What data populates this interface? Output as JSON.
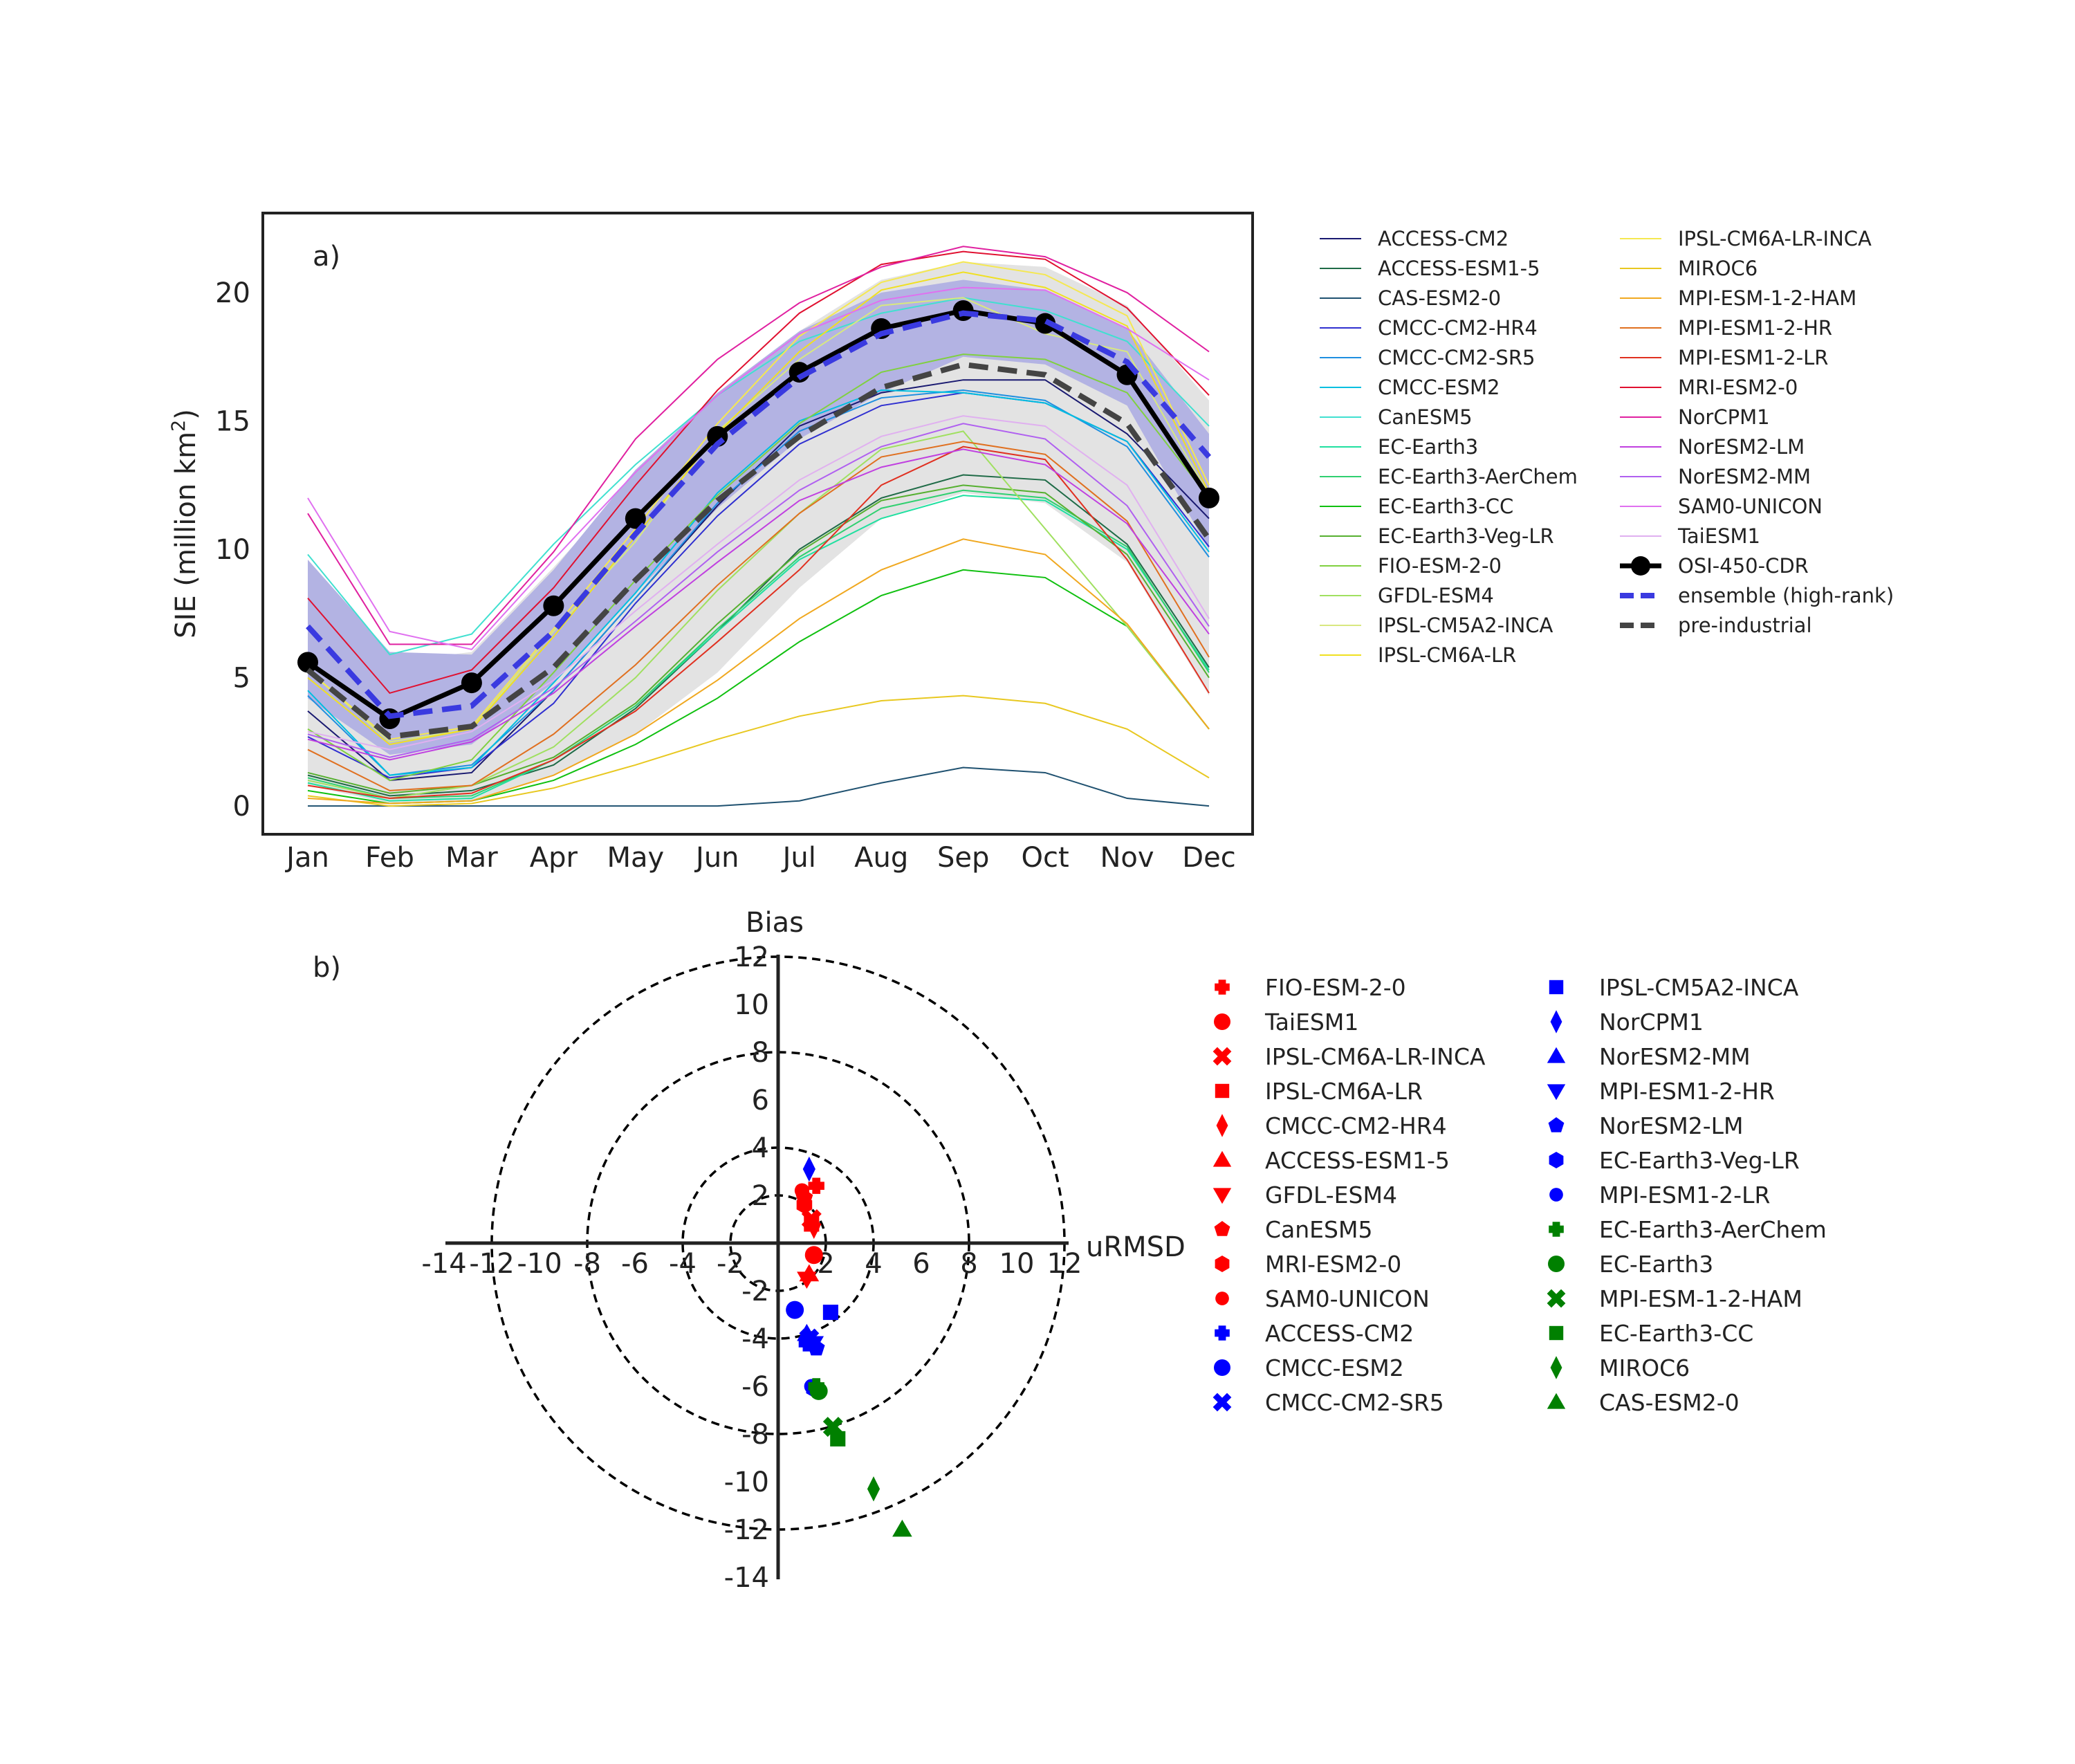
{
  "chart_data": [
    {
      "type": "line",
      "panel_label": "a)",
      "ylabel": "SIE (million km²)",
      "ylabel_main": "SIE (million km",
      "ylabel_sup": "2",
      "ylabel_close": ")",
      "ylim": [
        -1.1,
        23.1
      ],
      "yticks": [
        0,
        5,
        10,
        15,
        20
      ],
      "categories": [
        "Jan",
        "Feb",
        "Mar",
        "Apr",
        "May",
        "Jun",
        "Jul",
        "Aug",
        "Sep",
        "Oct",
        "Nov",
        "Dec"
      ],
      "grid": false,
      "legend_position": "right",
      "bands": [
        {
          "name": "pre-industrial range",
          "color": "#e3e3e3",
          "lower": [
            0.8,
            0.1,
            0.2,
            1.2,
            2.8,
            5.2,
            8.5,
            11.2,
            12.2,
            11.8,
            9.5,
            4.3
          ],
          "upper": [
            9.1,
            5.6,
            6.0,
            9.3,
            12.8,
            15.6,
            18.5,
            20.5,
            21.2,
            21.0,
            19.5,
            15.8
          ]
        },
        {
          "name": "high-rank ensemble range",
          "color": "#b3b3e3",
          "lower": [
            4.2,
            2.0,
            2.4,
            4.8,
            8.3,
            11.6,
            14.3,
            16.1,
            17.5,
            17.2,
            15.6,
            10.0
          ],
          "upper": [
            9.6,
            6.0,
            5.9,
            9.2,
            13.1,
            16.1,
            18.5,
            20.0,
            20.5,
            20.1,
            18.6,
            14.5
          ]
        }
      ],
      "series": [
        {
          "name": "ACCESS-CM2",
          "color": "#191970",
          "values": [
            3.7,
            1.0,
            1.3,
            4.5,
            8.1,
            11.7,
            14.8,
            16.1,
            16.6,
            16.6,
            14.5,
            11.2
          ]
        },
        {
          "name": "ACCESS-ESM1-5",
          "color": "#1f6b47",
          "values": [
            1.2,
            0.4,
            0.6,
            1.6,
            3.8,
            6.8,
            10.0,
            12.0,
            12.9,
            12.7,
            10.2,
            5.4
          ]
        },
        {
          "name": "CAS-ESM2-0",
          "color": "#1f5170",
          "values": [
            0.0,
            0.0,
            0.0,
            0.0,
            0.0,
            0.0,
            0.2,
            0.9,
            1.5,
            1.3,
            0.3,
            0.0
          ]
        },
        {
          "name": "CMCC-CM2-HR4",
          "color": "#3030d0",
          "values": [
            2.7,
            1.1,
            1.5,
            4.0,
            7.9,
            11.3,
            14.1,
            15.6,
            16.1,
            15.7,
            14.2,
            10.1
          ]
        },
        {
          "name": "CMCC-CM2-SR5",
          "color": "#1f8fe0",
          "values": [
            4.3,
            1.2,
            1.6,
            4.5,
            8.1,
            11.8,
            14.6,
            15.9,
            16.2,
            15.8,
            14.0,
            9.7
          ]
        },
        {
          "name": "CMCC-ESM2",
          "color": "#00bfe0",
          "values": [
            4.5,
            1.2,
            1.5,
            4.8,
            8.3,
            12.2,
            15.0,
            16.2,
            16.1,
            15.7,
            14.2,
            9.9
          ]
        },
        {
          "name": "CanESM5",
          "color": "#40e0d0",
          "values": [
            9.8,
            5.9,
            6.7,
            10.2,
            13.3,
            16.0,
            18.1,
            19.2,
            19.8,
            19.3,
            18.1,
            14.8
          ]
        },
        {
          "name": "EC-Earth3",
          "color": "#20e0a0",
          "values": [
            0.9,
            0.2,
            0.3,
            1.8,
            3.9,
            6.8,
            9.6,
            11.2,
            12.1,
            11.9,
            10.0,
            5.3
          ]
        },
        {
          "name": "EC-Earth3-AerChem",
          "color": "#30d070",
          "values": [
            1.1,
            0.3,
            0.4,
            1.8,
            3.9,
            6.9,
            9.7,
            11.6,
            12.3,
            12.0,
            10.1,
            5.2
          ]
        },
        {
          "name": "EC-Earth3-CC",
          "color": "#10c010",
          "values": [
            0.6,
            0.1,
            0.2,
            1.0,
            2.4,
            4.2,
            6.4,
            8.2,
            9.2,
            8.9,
            7.0,
            3.0
          ]
        },
        {
          "name": "EC-Earth3-Veg-LR",
          "color": "#56b030",
          "values": [
            1.3,
            0.5,
            0.8,
            1.9,
            4.0,
            7.1,
            9.9,
            11.9,
            12.5,
            12.2,
            9.8,
            5.0
          ]
        },
        {
          "name": "FIO-ESM-2-0",
          "color": "#80d040",
          "values": [
            3.0,
            1.0,
            1.8,
            5.2,
            8.8,
            12.1,
            14.9,
            16.9,
            17.6,
            17.4,
            16.1,
            12.0
          ]
        },
        {
          "name": "GFDL-ESM4",
          "color": "#a0e060",
          "values": [
            1.0,
            0.3,
            0.8,
            2.3,
            5.0,
            8.4,
            11.4,
            13.9,
            14.6,
            10.8,
            7.0,
            3.0
          ]
        },
        {
          "name": "IPSL-CM5A2-INCA",
          "color": "#d8e880",
          "values": [
            5.3,
            2.5,
            3.0,
            6.8,
            10.3,
            14.6,
            17.4,
            19.5,
            19.8,
            18.4,
            17.7,
            12.1
          ]
        },
        {
          "name": "IPSL-CM6A-LR",
          "color": "#f0e020",
          "values": [
            5.0,
            2.4,
            3.0,
            6.6,
            10.5,
            14.5,
            17.7,
            20.1,
            20.8,
            20.2,
            18.7,
            12.2
          ]
        },
        {
          "name": "IPSL-CM6A-LR-INCA",
          "color": "#f5e850",
          "values": [
            5.3,
            2.6,
            3.1,
            6.9,
            10.8,
            14.9,
            18.3,
            20.4,
            21.2,
            20.7,
            19.1,
            12.5
          ]
        },
        {
          "name": "MIROC6",
          "color": "#e8c820",
          "values": [
            0.4,
            0.0,
            0.1,
            0.7,
            1.6,
            2.6,
            3.5,
            4.1,
            4.3,
            4.0,
            3.0,
            1.1
          ]
        },
        {
          "name": "MPI-ESM-1-2-HAM",
          "color": "#f0a820",
          "values": [
            0.3,
            0.1,
            0.2,
            1.2,
            2.8,
            4.9,
            7.3,
            9.2,
            10.4,
            9.8,
            7.1,
            3.0
          ]
        },
        {
          "name": "MPI-ESM1-2-HR",
          "color": "#e07020",
          "values": [
            2.2,
            0.6,
            0.8,
            2.8,
            5.5,
            8.6,
            11.4,
            13.6,
            14.2,
            13.7,
            11.1,
            5.8
          ]
        },
        {
          "name": "MPI-ESM1-2-LR",
          "color": "#e03020",
          "values": [
            0.8,
            0.3,
            0.5,
            1.8,
            3.7,
            6.4,
            9.2,
            12.5,
            14.0,
            13.5,
            9.6,
            4.4
          ]
        },
        {
          "name": "MRI-ESM2-0",
          "color": "#e01030",
          "values": [
            8.1,
            4.4,
            5.3,
            8.5,
            12.5,
            16.2,
            19.2,
            21.1,
            21.6,
            21.3,
            19.4,
            16.0
          ]
        },
        {
          "name": "NorCPM1",
          "color": "#e020a0",
          "values": [
            11.4,
            6.3,
            6.3,
            9.9,
            14.3,
            17.4,
            19.6,
            21.0,
            21.8,
            21.4,
            20.0,
            17.7
          ]
        },
        {
          "name": "NorESM2-LM",
          "color": "#c040e0",
          "values": [
            2.6,
            1.8,
            2.5,
            4.4,
            7.0,
            9.5,
            11.9,
            13.2,
            13.9,
            13.3,
            11.0,
            6.7
          ]
        },
        {
          "name": "NorESM2-MM",
          "color": "#b060f0",
          "values": [
            2.8,
            1.9,
            2.6,
            4.6,
            7.2,
            9.9,
            12.3,
            14.0,
            14.9,
            14.3,
            11.7,
            7.0
          ]
        },
        {
          "name": "SAM0-UNICON",
          "color": "#e070f0",
          "values": [
            12.0,
            6.8,
            6.1,
            9.6,
            13.0,
            16.0,
            18.4,
            19.7,
            20.2,
            20.1,
            18.6,
            16.6
          ]
        },
        {
          "name": "TaiESM1",
          "color": "#e0b0f0",
          "values": [
            2.9,
            2.2,
            2.9,
            4.9,
            7.6,
            10.2,
            12.7,
            14.4,
            15.2,
            14.8,
            12.5,
            7.3
          ]
        },
        {
          "name": "OSI-450-CDR",
          "color": "#000000",
          "marker": "circle",
          "values": [
            5.6,
            3.4,
            4.8,
            7.8,
            11.2,
            14.4,
            16.9,
            18.6,
            19.3,
            18.8,
            16.8,
            12.0
          ]
        },
        {
          "name": "ensemble (high-rank)",
          "color": "#3a3ae0",
          "dash": true,
          "values": [
            7.0,
            3.5,
            3.9,
            6.8,
            10.6,
            14.1,
            16.7,
            18.4,
            19.2,
            18.9,
            17.3,
            13.6
          ]
        },
        {
          "name": "pre-industrial",
          "color": "#444444",
          "dash": true,
          "values": [
            5.3,
            2.7,
            3.1,
            5.4,
            8.8,
            11.9,
            14.4,
            16.3,
            17.2,
            16.8,
            14.9,
            10.4
          ]
        }
      ]
    },
    {
      "type": "scatter",
      "panel_label": "b)",
      "xlabel": "uRMSD",
      "ylabel": "Bias",
      "xlim": [
        -14,
        12
      ],
      "ylim": [
        -14,
        12
      ],
      "xticks": [
        -14,
        -12,
        -10,
        -8,
        -6,
        -4,
        -2,
        2,
        4,
        6,
        8,
        10,
        12
      ],
      "yticks": [
        12,
        10,
        8,
        6,
        4,
        2,
        -2,
        -4,
        -6,
        -8,
        -10,
        -12,
        -14
      ],
      "circles": [
        2,
        4,
        8,
        12
      ],
      "legend_position": "right",
      "points": [
        {
          "name": "FIO-ESM-2-0",
          "color": "#ff0000",
          "marker": "plus",
          "x": 1.6,
          "y": 2.4
        },
        {
          "name": "TaiESM1",
          "color": "#ff0000",
          "marker": "circle",
          "x": 1.5,
          "y": -0.5
        },
        {
          "name": "IPSL-CM6A-LR-INCA",
          "color": "#ff0000",
          "marker": "x",
          "x": 1.4,
          "y": 1.0
        },
        {
          "name": "IPSL-CM6A-LR",
          "color": "#ff0000",
          "marker": "square",
          "x": 1.4,
          "y": 0.8
        },
        {
          "name": "CMCC-CM2-HR4",
          "color": "#ff0000",
          "marker": "thin_diamond",
          "x": 1.5,
          "y": 0.7
        },
        {
          "name": "ACCESS-ESM1-5",
          "color": "#ff0000",
          "marker": "triangle_up",
          "x": 1.3,
          "y": -1.3
        },
        {
          "name": "GFDL-ESM4",
          "color": "#ff0000",
          "marker": "triangle_down",
          "x": 1.2,
          "y": -1.5
        },
        {
          "name": "CanESM5",
          "color": "#ff0000",
          "marker": "pentagon",
          "x": 1.1,
          "y": 1.9
        },
        {
          "name": "MRI-ESM2-0",
          "color": "#ff0000",
          "marker": "hexagon",
          "x": 1.1,
          "y": 1.6
        },
        {
          "name": "SAM0-UNICON",
          "color": "#ff0000",
          "marker": "octagon",
          "x": 1.0,
          "y": 2.2
        },
        {
          "name": "ACCESS-CM2",
          "color": "#0000ff",
          "marker": "plus",
          "x": 1.2,
          "y": -4.2
        },
        {
          "name": "CMCC-ESM2",
          "color": "#0000ff",
          "marker": "circle",
          "x": 0.7,
          "y": -2.8
        },
        {
          "name": "CMCC-CM2-SR5",
          "color": "#0000ff",
          "marker": "x",
          "x": 1.3,
          "y": -4.0
        },
        {
          "name": "IPSL-CM5A2-INCA",
          "color": "#0000ff",
          "marker": "square",
          "x": 2.2,
          "y": -2.9
        },
        {
          "name": "NorCPM1",
          "color": "#0000ff",
          "marker": "thin_diamond",
          "x": 1.3,
          "y": 3.1
        },
        {
          "name": "NorESM2-MM",
          "color": "#0000ff",
          "marker": "triangle_up",
          "x": 1.2,
          "y": -3.8
        },
        {
          "name": "MPI-ESM1-2-HR",
          "color": "#0000ff",
          "marker": "triangle_down",
          "x": 1.5,
          "y": -4.2
        },
        {
          "name": "NorESM2-LM",
          "color": "#0000ff",
          "marker": "pentagon",
          "x": 1.6,
          "y": -4.4
        },
        {
          "name": "EC-Earth3-Veg-LR",
          "color": "#0000ff",
          "marker": "hexagon",
          "x": 1.5,
          "y": -6.1
        },
        {
          "name": "MPI-ESM1-2-LR",
          "color": "#0000ff",
          "marker": "octagon",
          "x": 1.4,
          "y": -6.0
        },
        {
          "name": "EC-Earth3-AerChem",
          "color": "#008000",
          "marker": "plus",
          "x": 1.6,
          "y": -6.0
        },
        {
          "name": "EC-Earth3",
          "color": "#008000",
          "marker": "circle",
          "x": 1.7,
          "y": -6.2
        },
        {
          "name": "MPI-ESM-1-2-HAM",
          "color": "#008000",
          "marker": "x",
          "x": 2.3,
          "y": -7.7
        },
        {
          "name": "EC-Earth3-CC",
          "color": "#008000",
          "marker": "square",
          "x": 2.5,
          "y": -8.2
        },
        {
          "name": "MIROC6",
          "color": "#008000",
          "marker": "thin_diamond",
          "x": 4.0,
          "y": -10.3
        },
        {
          "name": "CAS-ESM2-0",
          "color": "#008000",
          "marker": "triangle_up",
          "x": 5.2,
          "y": -12.0
        }
      ]
    }
  ]
}
